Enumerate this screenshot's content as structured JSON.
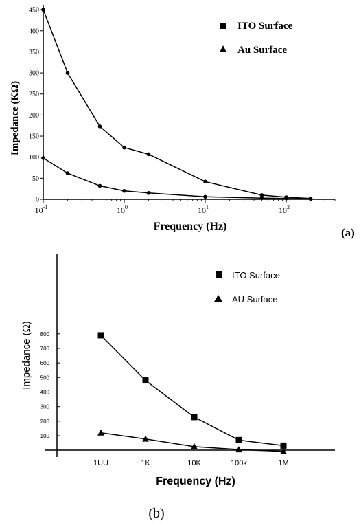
{
  "chart_data": [
    {
      "type": "line",
      "panel_label": "(a)",
      "xlabel": "Frequency (Hz)",
      "ylabel": "Impedance (KΩ)",
      "x_scale": "log",
      "xlim": [
        0.1,
        400
      ],
      "ylim": [
        0,
        460
      ],
      "y_ticks": [
        "0",
        "50",
        "100",
        "150",
        "200",
        "250",
        "300",
        "350",
        "400",
        "450"
      ],
      "x_ticks": [
        {
          "base": "10",
          "exp": "-1",
          "value": 0.1
        },
        {
          "base": "10",
          "exp": "0",
          "value": 1
        },
        {
          "base": "10",
          "exp": "1",
          "value": 10
        },
        {
          "base": "10",
          "exp": "2",
          "value": 100
        }
      ],
      "grid": false,
      "legend_position": "top-right",
      "series": [
        {
          "name": "ITO Surface",
          "marker": "square",
          "points": [
            [
              0.1,
              450
            ],
            [
              0.2,
              300
            ],
            [
              0.5,
              173
            ],
            [
              1,
              123
            ],
            [
              2,
              107
            ],
            [
              10,
              42
            ],
            [
              50,
              10
            ],
            [
              100,
              5
            ],
            [
              200,
              2
            ]
          ]
        },
        {
          "name": "Au Surface",
          "marker": "triangle",
          "points": [
            [
              0.1,
              98
            ],
            [
              0.2,
              62
            ],
            [
              0.5,
              32
            ],
            [
              1,
              20
            ],
            [
              2,
              15
            ],
            [
              10,
              6
            ],
            [
              50,
              3
            ],
            [
              100,
              2
            ],
            [
              200,
              1
            ]
          ]
        }
      ]
    },
    {
      "type": "line",
      "panel_label": "(b)",
      "xlabel": "Frequency (Hz)",
      "ylabel": "Impedance (Ω)",
      "categories": [
        "1UU",
        "1K",
        "10K",
        "100k",
        "1M"
      ],
      "ylim": [
        0,
        850
      ],
      "y_ticks": [
        "100",
        "200",
        "300",
        "400",
        "500",
        "600",
        "700",
        "800"
      ],
      "grid": false,
      "legend_position": "top-right",
      "series": [
        {
          "name": "ITO Surface",
          "marker": "square",
          "values": [
            790,
            480,
            228,
            70,
            32
          ]
        },
        {
          "name": "AU Surface",
          "marker": "triangle",
          "values": [
            120,
            78,
            25,
            5,
            -8
          ]
        }
      ]
    }
  ]
}
